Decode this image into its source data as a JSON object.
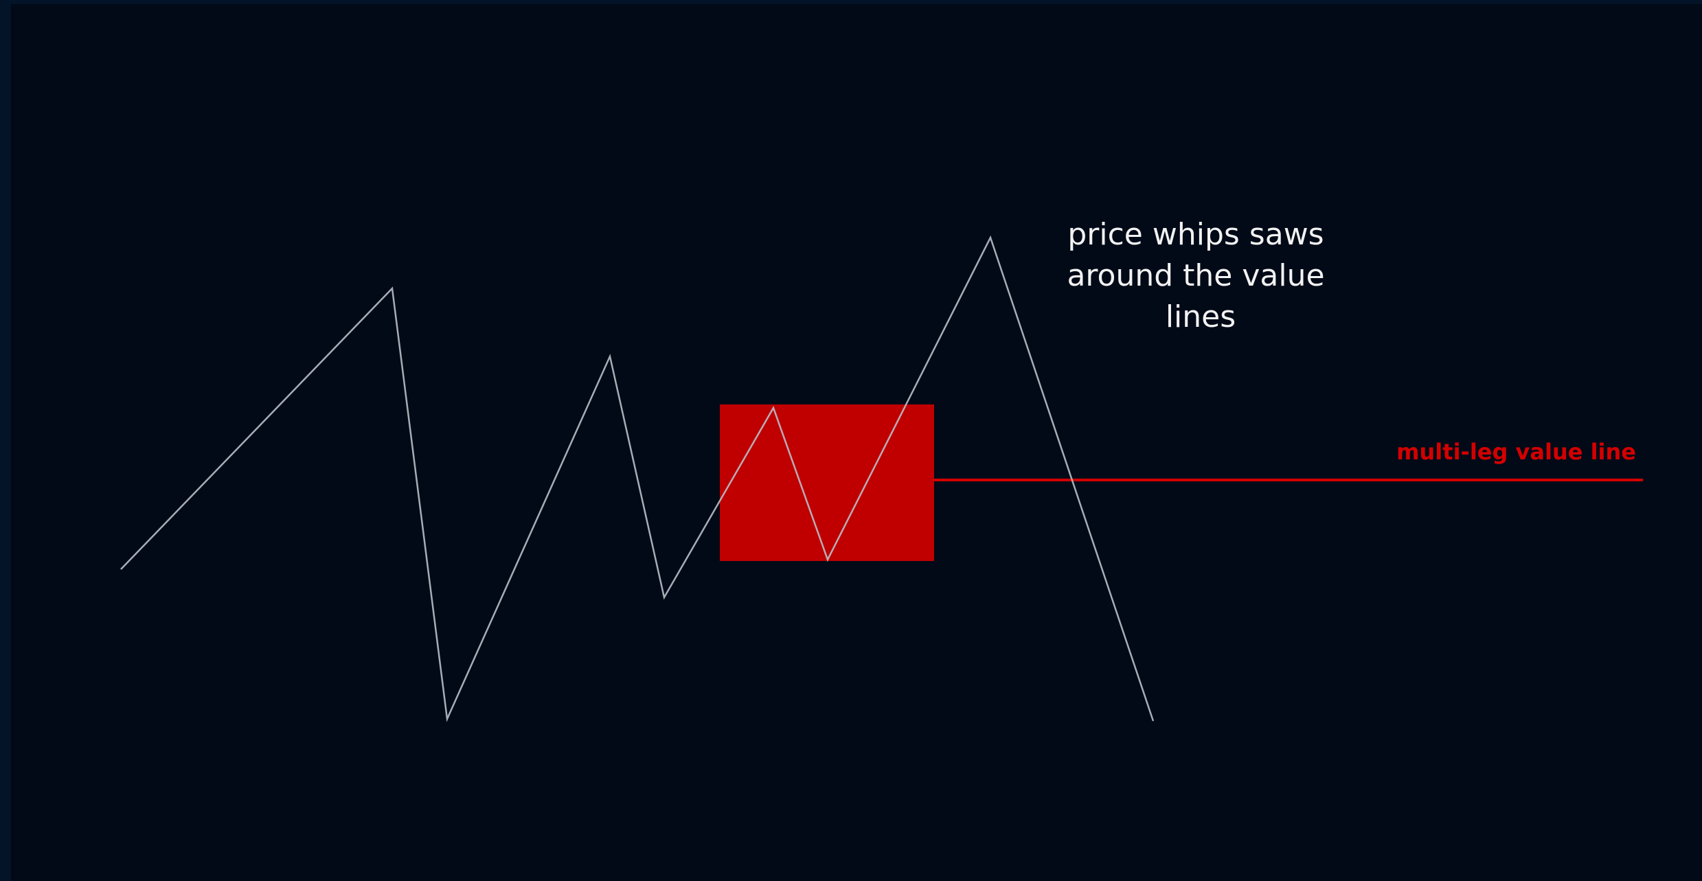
{
  "annotation": {
    "lines": [
      "price whips saws",
      "around the value",
      "lines"
    ]
  },
  "value_line": {
    "label": "multi-leg value line"
  },
  "colors": {
    "background": "#020a17",
    "price_path": "#b9bfc8",
    "value_zone": "#c00000",
    "value_line": "#d40000",
    "annotation_text": "#f2f2f2"
  }
}
